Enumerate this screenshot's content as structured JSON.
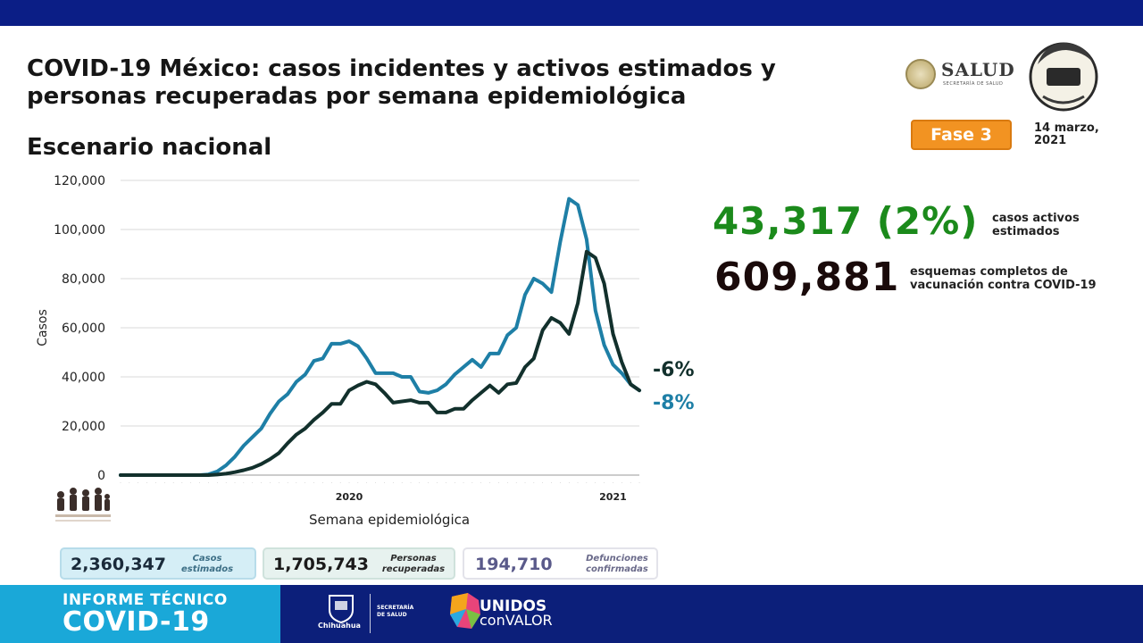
{
  "header": {
    "title": "COVID-19 México: casos incidentes y activos estimados y personas recuperadas por semana epidemiológica",
    "subtitle": "Escenario nacional",
    "salud_logo_text": "SALUD",
    "salud_logo_subtext": "SECRETARÍA DE SALUD",
    "phase_badge": "Fase 3",
    "date": "14 marzo, 2021"
  },
  "stats": {
    "active_cases": "43,317 (2%)",
    "active_cases_label": "casos activos estimados",
    "vaccination": "609,881",
    "vaccination_label": "esquemas completos de vacunación contra COVID-19"
  },
  "summary_boxes": [
    {
      "value": "2,360,347",
      "label": "Casos estimados"
    },
    {
      "value": "1,705,743",
      "label": "Personas recuperadas"
    },
    {
      "value": "194,710",
      "label": "Defunciones confirmadas"
    }
  ],
  "footer": {
    "informe_line1": "INFORME TÉCNICO",
    "informe_line2": "COVID-19",
    "chihuahua_label": "Chihuahua",
    "secretaria_label": "SECRETARÍA DE SALUD",
    "unidos_line1": "UNIDOS",
    "unidos_line2": "conVALOR"
  },
  "colors": {
    "series_blue": "#1e7fa6",
    "series_dark": "#12302c",
    "active_green": "#1b8a1b",
    "phase_orange": "#f29322",
    "top_band": "#0b1e86"
  },
  "chart_data": {
    "type": "line",
    "xlabel": "Semana epidemiológica",
    "ylabel": "Casos",
    "ylim": [
      0,
      120000
    ],
    "yticks": [
      0,
      20000,
      40000,
      60000,
      80000,
      100000,
      120000
    ],
    "ytick_labels": [
      "0",
      "20,000",
      "40,000",
      "60,000",
      "80,000",
      "100,000",
      "120,000"
    ],
    "year_labels": [
      {
        "label": "2020",
        "week_index": 26
      },
      {
        "label": "2021",
        "week_index": 56
      }
    ],
    "grid": true,
    "series": [
      {
        "color": "#1e7fa6",
        "end_label": "-8%",
        "values": [
          0,
          0,
          0,
          0,
          0,
          0,
          0,
          0,
          0,
          0,
          300,
          1500,
          4000,
          7500,
          12000,
          15500,
          19000,
          25000,
          30000,
          33000,
          38000,
          41000,
          46500,
          47500,
          53500,
          53500,
          54500,
          52500,
          47500,
          41500,
          41500,
          41500,
          40000,
          40000,
          34000,
          33500,
          34500,
          37000,
          41000,
          44000,
          47000,
          44000,
          49500,
          49500,
          57000,
          60000,
          73500,
          80000,
          78000,
          74500,
          95000,
          112500,
          110000,
          96000,
          67000,
          53000,
          45000,
          41500,
          37000,
          34500
        ]
      },
      {
        "color": "#12302c",
        "end_label": "-6%",
        "values": [
          0,
          0,
          0,
          0,
          0,
          0,
          0,
          0,
          0,
          0,
          0,
          200,
          600,
          1200,
          2000,
          3000,
          4500,
          6500,
          9000,
          13000,
          16500,
          19000,
          22500,
          25500,
          29000,
          29000,
          34500,
          36500,
          38000,
          37000,
          33500,
          29500,
          30000,
          30500,
          29500,
          29500,
          25500,
          25500,
          27000,
          27000,
          30500,
          33500,
          36500,
          33500,
          37000,
          37500,
          44000,
          47500,
          59000,
          64000,
          62000,
          57500,
          70000,
          91000,
          88500,
          78000,
          57500,
          46000,
          37000,
          34500
        ]
      }
    ]
  }
}
